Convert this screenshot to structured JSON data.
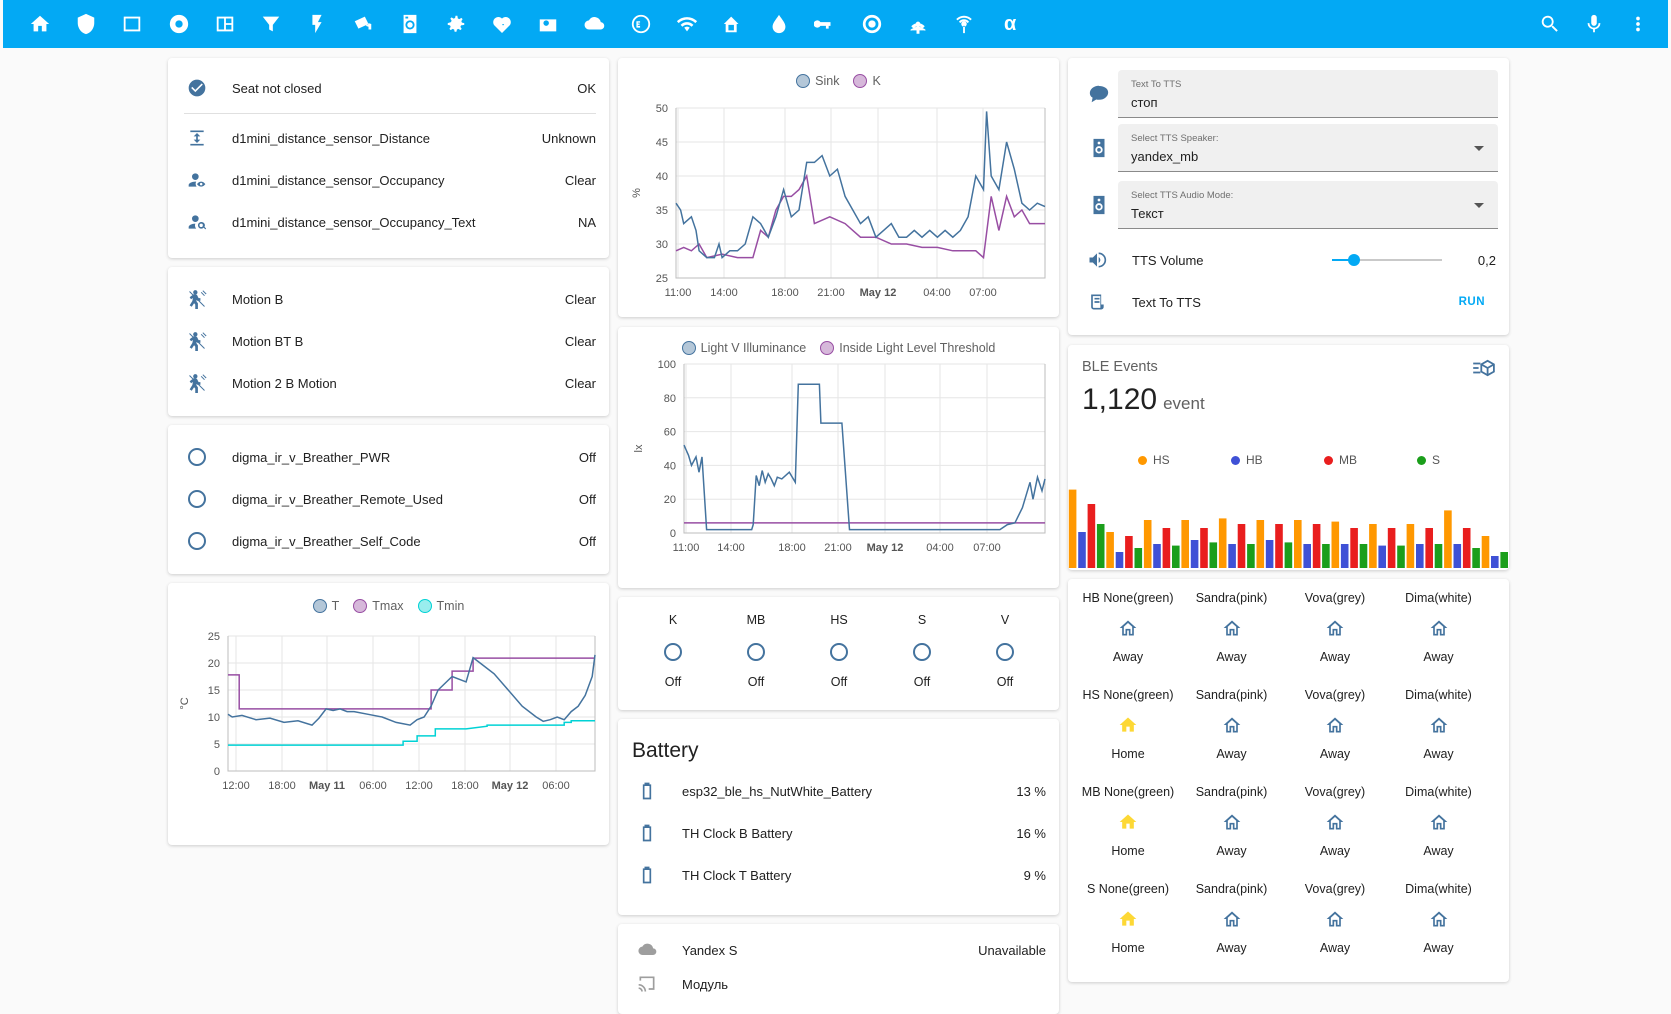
{
  "toolbar": {
    "icons": [
      "home-icon",
      "shield-icon",
      "square-icon",
      "disc-icon",
      "map-icon",
      "filter-icon",
      "flash-icon",
      "cctv-icon",
      "washer-icon",
      "gear-icon",
      "heart-pulse-icon",
      "radio-icon",
      "cloud-icon",
      "esp-icon",
      "wifi-icon",
      "house-signal-icon",
      "water-icon",
      "key-icon",
      "target-icon",
      "access-point-icon",
      "antenna-icon"
    ],
    "alpha": "α",
    "right_icons": [
      "search-icon",
      "microphone-icon",
      "more-vertical-icon"
    ]
  },
  "seat_card": {
    "rows": [
      {
        "icon": "check-circle-icon",
        "name": "Seat not closed",
        "state": "OK"
      },
      {
        "icon": "arrow-expand-vertical-icon",
        "name": "d1mini_distance_sensor_Distance",
        "state": "Unknown"
      },
      {
        "icon": "account-eye-icon",
        "name": "d1mini_distance_sensor_Occupancy",
        "state": "Clear"
      },
      {
        "icon": "account-search-icon",
        "name": "d1mini_distance_sensor_Occupancy_Text",
        "state": "NA"
      }
    ]
  },
  "motion_card": {
    "rows": [
      {
        "icon": "motion-sensor-icon",
        "name": "Motion B",
        "state": "Clear"
      },
      {
        "icon": "motion-sensor-icon",
        "name": "Motion BT B",
        "state": "Clear"
      },
      {
        "icon": "motion-sensor-icon",
        "name": "Motion 2 B Motion",
        "state": "Clear"
      }
    ]
  },
  "breather_card": {
    "rows": [
      {
        "icon": "circle-outline-icon",
        "name": "digma_ir_v_Breather_PWR",
        "state": "Off"
      },
      {
        "icon": "circle-outline-icon",
        "name": "digma_ir_v_Breather_Remote_Used",
        "state": "Off"
      },
      {
        "icon": "circle-outline-icon",
        "name": "digma_ir_v_Breather_Self_Code",
        "state": "Off"
      }
    ]
  },
  "chart_data": [
    {
      "id": "temperature",
      "type": "line",
      "title": "",
      "legend": [
        "T",
        "Tmax",
        "Tmin"
      ],
      "colors": [
        "#44739e",
        "#984ea3",
        "#00d2d5"
      ],
      "ylabel": "°C",
      "ylim": [
        0,
        25
      ],
      "yticks": [
        "0",
        "5",
        "10",
        "15",
        "20",
        "25"
      ],
      "xticks": [
        "12:00",
        "18:00",
        "May 11",
        "06:00",
        "12:00",
        "18:00",
        "May 12",
        "06:00"
      ],
      "series": [
        {
          "name": "T",
          "x": [
            0,
            0.3,
            1,
            2,
            3,
            4,
            5,
            6,
            6.5,
            7,
            7.5,
            8,
            8.5,
            9,
            10,
            11,
            12,
            13,
            13.5,
            14,
            14.5,
            15,
            16,
            17,
            17.5,
            18,
            19,
            20,
            21,
            22,
            22.5,
            23,
            23.5,
            24,
            24.5,
            25,
            25.5,
            26,
            26.2
          ],
          "values": [
            10.5,
            10,
            10.3,
            9.5,
            9.8,
            9,
            9.3,
            8.5,
            9.8,
            11.5,
            11.2,
            11.5,
            11,
            11,
            10.5,
            10,
            9,
            8.5,
            9.5,
            10,
            12,
            15,
            17.5,
            16.5,
            21,
            20,
            18,
            15,
            12,
            10,
            9.2,
            9.5,
            10,
            9.5,
            11,
            12,
            14,
            17.5,
            21.5
          ]
        },
        {
          "name": "Tmax",
          "x": [
            0,
            0.8,
            0.8,
            2.5,
            2.5,
            14.5,
            14.5,
            16,
            16,
            17.5,
            17.5,
            26.2
          ],
          "values": [
            17.8,
            17.8,
            11.5,
            11.5,
            11.5,
            11.5,
            15,
            15,
            18.5,
            18.5,
            20.9,
            20.9
          ]
        },
        {
          "name": "Tmin",
          "x": [
            0,
            12.5,
            12.5,
            13.5,
            13.5,
            14.8,
            14.8,
            17,
            17,
            18.5,
            18.5,
            24,
            24,
            24.5,
            24.5,
            26.2
          ],
          "values": [
            4.8,
            4.8,
            5.5,
            5.5,
            6.5,
            6.5,
            7.8,
            7.8,
            7.8,
            8.3,
            8.5,
            8.5,
            9,
            9,
            9.3,
            9.3
          ]
        }
      ]
    },
    {
      "id": "sink",
      "type": "line",
      "legend": [
        "Sink",
        "K"
      ],
      "colors": [
        "#44739e",
        "#984ea3"
      ],
      "ylabel": "%",
      "ylim": [
        25,
        50
      ],
      "yticks": [
        "25",
        "30",
        "35",
        "40",
        "45",
        "50"
      ],
      "xticks": [
        "11:00",
        "14:00",
        "18:00",
        "21:00",
        "May 12",
        "04:00",
        "07:00"
      ],
      "series": [
        {
          "name": "Sink",
          "x": [
            0,
            0.3,
            0.5,
            1,
            1.3,
            1.5,
            2,
            2.5,
            2.8,
            3,
            3.5,
            4,
            4.5,
            5,
            5.5,
            6,
            6.5,
            7,
            7.5,
            8,
            8.5,
            9,
            9.5,
            10,
            10.5,
            11,
            11.5,
            12,
            12.5,
            13,
            13.5,
            14,
            14.5,
            15,
            15.5,
            16,
            16.5,
            17,
            17.5,
            18,
            18.5,
            19,
            19.5,
            20,
            20.2,
            20.5,
            21,
            21.5,
            22,
            22.5,
            23,
            23.5,
            24
          ],
          "values": [
            36,
            35,
            33,
            34,
            32,
            29,
            28,
            28,
            30,
            28,
            29,
            29,
            30,
            34,
            33,
            31,
            34,
            38,
            34,
            35,
            42,
            42,
            43,
            40,
            41,
            37,
            35,
            33,
            34,
            31,
            32,
            33,
            31,
            31,
            32,
            31,
            32,
            31,
            32,
            31,
            32,
            34,
            40,
            38,
            49.5,
            40,
            38,
            45,
            41,
            36,
            35,
            36,
            35.5
          ]
        },
        {
          "name": "K",
          "x": [
            0,
            0.5,
            1,
            1.5,
            2,
            3,
            4,
            5,
            5.5,
            6,
            6.5,
            7,
            7.5,
            8,
            8.5,
            9,
            10,
            11,
            11.5,
            12,
            13,
            14,
            15,
            16,
            17,
            18,
            19,
            19.5,
            20,
            20.5,
            21,
            21.5,
            22,
            22.5,
            23,
            23.5,
            24
          ],
          "values": [
            29,
            29.5,
            29,
            30,
            28,
            28.5,
            28,
            28,
            32,
            31,
            35,
            37,
            37,
            38,
            40,
            33,
            34,
            33,
            32,
            31,
            31,
            30,
            30,
            29.5,
            29.5,
            29,
            29,
            29,
            28,
            37,
            32,
            37,
            34,
            35,
            33,
            33,
            33
          ]
        }
      ]
    },
    {
      "id": "illuminance",
      "type": "line",
      "legend": [
        "Light V Illuminance",
        "Inside Light Level Threshold"
      ],
      "colors": [
        "#44739e",
        "#984ea3"
      ],
      "ylabel": "lx",
      "ylim": [
        0,
        100
      ],
      "yticks": [
        "0",
        "20",
        "40",
        "60",
        "80",
        "100"
      ],
      "xticks": [
        "11:00",
        "14:00",
        "18:00",
        "21:00",
        "May 12",
        "04:00",
        "07:00"
      ],
      "series": [
        {
          "name": "Light V Illuminance",
          "x": [
            0,
            0.1,
            0.3,
            0.5,
            0.8,
            1,
            1.2,
            1.5,
            2,
            3,
            4,
            4.5,
            4.6,
            4.8,
            5,
            5.2,
            5.4,
            5.6,
            5.8,
            6,
            6.2,
            6.5,
            7,
            7.4,
            7.6,
            8,
            9,
            9.1,
            9.5,
            10,
            10.5,
            11,
            12,
            14,
            16,
            18,
            18.5,
            19,
            20,
            21,
            21.5,
            22,
            22.5,
            23,
            23.2,
            23.5,
            23.8,
            24
          ],
          "values": [
            52,
            50,
            46,
            40,
            45,
            36,
            45,
            2,
            2,
            2,
            2,
            2,
            5,
            34,
            28,
            37,
            30,
            35,
            32,
            28,
            33,
            32,
            36,
            30,
            88,
            88,
            88,
            65,
            65,
            65,
            65,
            2,
            2,
            2,
            2,
            2,
            2,
            2,
            2,
            2,
            5,
            6,
            15,
            30,
            20,
            33,
            25,
            32
          ]
        },
        {
          "name": "Inside Light Level Threshold",
          "x": [
            0,
            24
          ],
          "values": [
            6,
            6
          ]
        }
      ]
    }
  ],
  "toggle_card": {
    "items": [
      {
        "label": "K",
        "state": "Off"
      },
      {
        "label": "MB",
        "state": "Off"
      },
      {
        "label": "HS",
        "state": "Off"
      },
      {
        "label": "S",
        "state": "Off"
      },
      {
        "label": "V",
        "state": "Off"
      }
    ]
  },
  "battery_card": {
    "title": "Battery",
    "rows": [
      {
        "icon": "battery-icon",
        "name": "esp32_ble_hs_NutWhite_Battery",
        "state": "13 %"
      },
      {
        "icon": "battery-icon",
        "name": "TH Clock B Battery",
        "state": "16 %"
      },
      {
        "icon": "battery-icon",
        "name": "TH Clock T Battery",
        "state": "9 %"
      }
    ]
  },
  "yandex_card": {
    "rows": [
      {
        "icon": "cloud-icon",
        "name": "Yandex S",
        "state": "Unavailable"
      },
      {
        "icon": "cast-icon",
        "name": "Модуль",
        "state": ""
      }
    ]
  },
  "tts_card": {
    "text_field": {
      "label": "Text To TTS",
      "value": "стоп",
      "icon": "speech-bubble-icon"
    },
    "speaker_select": {
      "label": "Select TTS Speaker:",
      "value": "yandex_mb",
      "icon": "speaker-icon"
    },
    "mode_select": {
      "label": "Select TTS Audio Mode:",
      "value": "Текст",
      "icon": "speaker-icon"
    },
    "volume": {
      "label": "TTS Volume",
      "value": "0,2",
      "level": 0.2,
      "icon": "volume-icon"
    },
    "script": {
      "label": "Text To TTS",
      "action": "RUN",
      "icon": "script-icon"
    }
  },
  "ble_card": {
    "title": "BLE Events",
    "value": "1,120",
    "unit": "event",
    "legend": [
      {
        "name": "HS",
        "color": "#ff9800"
      },
      {
        "name": "HB",
        "color": "#3f51d6"
      },
      {
        "name": "MB",
        "color": "#e91e1e"
      },
      {
        "name": "S",
        "color": "#1b9e1b"
      }
    ],
    "bars": [
      {
        "c": "#ff9800",
        "v": 0.98
      },
      {
        "c": "#3f51d6",
        "v": 0.45
      },
      {
        "c": "#e91e1e",
        "v": 0.8
      },
      {
        "c": "#1b9e1b",
        "v": 0.55
      },
      {
        "c": "#ff9800",
        "v": 0.45
      },
      {
        "c": "#3f51d6",
        "v": 0.2
      },
      {
        "c": "#e91e1e",
        "v": 0.4
      },
      {
        "c": "#1b9e1b",
        "v": 0.25
      },
      {
        "c": "#ff9800",
        "v": 0.6
      },
      {
        "c": "#3f51d6",
        "v": 0.3
      },
      {
        "c": "#e91e1e",
        "v": 0.5
      },
      {
        "c": "#1b9e1b",
        "v": 0.28
      },
      {
        "c": "#ff9800",
        "v": 0.6
      },
      {
        "c": "#3f51d6",
        "v": 0.35
      },
      {
        "c": "#e91e1e",
        "v": 0.5
      },
      {
        "c": "#1b9e1b",
        "v": 0.32
      },
      {
        "c": "#ff9800",
        "v": 0.62
      },
      {
        "c": "#3f51d6",
        "v": 0.3
      },
      {
        "c": "#e91e1e",
        "v": 0.55
      },
      {
        "c": "#1b9e1b",
        "v": 0.3
      },
      {
        "c": "#ff9800",
        "v": 0.6
      },
      {
        "c": "#3f51d6",
        "v": 0.35
      },
      {
        "c": "#e91e1e",
        "v": 0.55
      },
      {
        "c": "#1b9e1b",
        "v": 0.32
      },
      {
        "c": "#ff9800",
        "v": 0.6
      },
      {
        "c": "#3f51d6",
        "v": 0.3
      },
      {
        "c": "#e91e1e",
        "v": 0.55
      },
      {
        "c": "#1b9e1b",
        "v": 0.3
      },
      {
        "c": "#ff9800",
        "v": 0.58
      },
      {
        "c": "#3f51d6",
        "v": 0.3
      },
      {
        "c": "#e91e1e",
        "v": 0.5
      },
      {
        "c": "#1b9e1b",
        "v": 0.3
      },
      {
        "c": "#ff9800",
        "v": 0.55
      },
      {
        "c": "#3f51d6",
        "v": 0.28
      },
      {
        "c": "#e91e1e",
        "v": 0.5
      },
      {
        "c": "#1b9e1b",
        "v": 0.28
      },
      {
        "c": "#ff9800",
        "v": 0.55
      },
      {
        "c": "#3f51d6",
        "v": 0.3
      },
      {
        "c": "#e91e1e",
        "v": 0.5
      },
      {
        "c": "#1b9e1b",
        "v": 0.3
      },
      {
        "c": "#ff9800",
        "v": 0.72
      },
      {
        "c": "#3f51d6",
        "v": 0.3
      },
      {
        "c": "#e91e1e",
        "v": 0.5
      },
      {
        "c": "#1b9e1b",
        "v": 0.25
      },
      {
        "c": "#ff9800",
        "v": 0.4
      },
      {
        "c": "#3f51d6",
        "v": 0.15
      },
      {
        "c": "#1b9e1b",
        "v": 0.2
      }
    ],
    "chart_icon": "chart-cube-icon"
  },
  "people_card": {
    "rows": [
      {
        "cells": [
          {
            "name": "HB None(green)",
            "state": "Away",
            "home": false
          },
          {
            "name": "Sandra(pink)",
            "state": "Away",
            "home": false
          },
          {
            "name": "Vova(grey)",
            "state": "Away",
            "home": false
          },
          {
            "name": "Dima(white)",
            "state": "Away",
            "home": false
          }
        ]
      },
      {
        "cells": [
          {
            "name": "HS None(green)",
            "state": "Home",
            "home": true
          },
          {
            "name": "Sandra(pink)",
            "state": "Away",
            "home": false
          },
          {
            "name": "Vova(grey)",
            "state": "Away",
            "home": false
          },
          {
            "name": "Dima(white)",
            "state": "Away",
            "home": false
          }
        ]
      },
      {
        "cells": [
          {
            "name": "MB None(green)",
            "state": "Home",
            "home": true
          },
          {
            "name": "Sandra(pink)",
            "state": "Away",
            "home": false
          },
          {
            "name": "Vova(grey)",
            "state": "Away",
            "home": false
          },
          {
            "name": "Dima(white)",
            "state": "Away",
            "home": false
          }
        ]
      },
      {
        "cells": [
          {
            "name": "S None(green)",
            "state": "Home",
            "home": true
          },
          {
            "name": "Sandra(pink)",
            "state": "Away",
            "home": false
          },
          {
            "name": "Vova(grey)",
            "state": "Away",
            "home": false
          },
          {
            "name": "Dima(white)",
            "state": "Away",
            "home": false
          }
        ]
      }
    ]
  }
}
